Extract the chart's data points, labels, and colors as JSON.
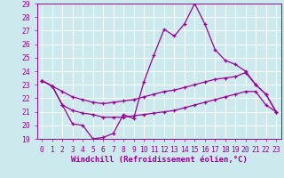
{
  "xlabel": "Windchill (Refroidissement éolien,°C)",
  "bg_color": "#cce9ee",
  "grid_color": "#ffffff",
  "line_color": "#990099",
  "xlim": [
    -0.5,
    23.5
  ],
  "ylim": [
    19,
    29
  ],
  "xticks": [
    0,
    1,
    2,
    3,
    4,
    5,
    6,
    7,
    8,
    9,
    10,
    11,
    12,
    13,
    14,
    15,
    16,
    17,
    18,
    19,
    20,
    21,
    22,
    23
  ],
  "yticks": [
    19,
    20,
    21,
    22,
    23,
    24,
    25,
    26,
    27,
    28,
    29
  ],
  "series1_x": [
    0,
    1,
    2,
    3,
    4,
    5,
    6,
    7,
    8,
    9,
    10,
    11,
    12,
    13,
    14,
    15,
    16,
    17,
    18,
    19,
    20,
    21,
    22,
    23
  ],
  "series1_y": [
    23.3,
    22.9,
    21.5,
    20.1,
    20.0,
    19.0,
    19.1,
    19.4,
    20.8,
    20.5,
    23.2,
    25.2,
    27.1,
    26.6,
    27.5,
    29.0,
    27.5,
    25.6,
    24.8,
    24.5,
    24.0,
    23.0,
    22.3,
    21.0
  ],
  "series2_x": [
    0,
    1,
    2,
    3,
    4,
    5,
    6,
    7,
    8,
    9,
    10,
    11,
    12,
    13,
    14,
    15,
    16,
    17,
    18,
    19,
    20,
    21,
    22,
    23
  ],
  "series2_y": [
    23.3,
    22.9,
    22.5,
    22.1,
    21.9,
    21.7,
    21.6,
    21.7,
    21.8,
    21.9,
    22.1,
    22.3,
    22.5,
    22.6,
    22.8,
    23.0,
    23.2,
    23.4,
    23.5,
    23.6,
    23.9,
    23.0,
    22.3,
    21.0
  ],
  "series3_x": [
    0,
    1,
    2,
    3,
    4,
    5,
    6,
    7,
    8,
    9,
    10,
    11,
    12,
    13,
    14,
    15,
    16,
    17,
    18,
    19,
    20,
    21,
    22,
    23
  ],
  "series3_y": [
    23.3,
    22.9,
    21.5,
    21.1,
    20.9,
    20.8,
    20.6,
    20.6,
    20.6,
    20.7,
    20.8,
    20.9,
    21.0,
    21.1,
    21.3,
    21.5,
    21.7,
    21.9,
    22.1,
    22.3,
    22.5,
    22.5,
    21.5,
    21.0
  ],
  "marker_size": 3,
  "line_width": 0.9,
  "tick_fontsize": 5.8,
  "label_fontsize": 6.5
}
